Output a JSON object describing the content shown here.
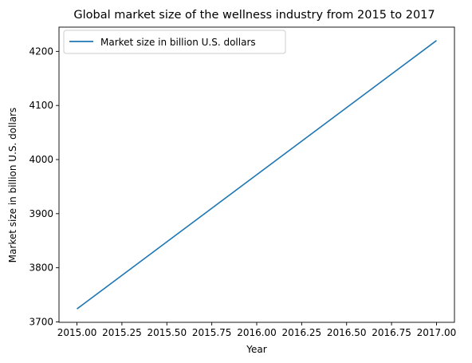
{
  "chart_data": {
    "type": "line",
    "title": "Global market size of the wellness industry from 2015 to 2017",
    "xlabel": "Year",
    "ylabel": "Market size in billion U.S. dollars",
    "x": [
      2015,
      2017
    ],
    "series": [
      {
        "name": "Market size in billion U.S. dollars",
        "values": [
          3724,
          4220
        ],
        "color": "#1f77b4"
      }
    ],
    "xlim": [
      2014.9,
      2017.1
    ],
    "ylim": [
      3699.2,
      4244.8
    ],
    "xticks": [
      2015.0,
      2015.25,
      2015.5,
      2015.75,
      2016.0,
      2016.25,
      2016.5,
      2016.75,
      2017.0
    ],
    "xtick_labels": [
      "2015.00",
      "2015.25",
      "2015.50",
      "2015.75",
      "2016.00",
      "2016.25",
      "2016.50",
      "2016.75",
      "2017.00"
    ],
    "yticks": [
      3700,
      3800,
      3900,
      4000,
      4100,
      4200
    ],
    "ytick_labels": [
      "3700",
      "3800",
      "3900",
      "4000",
      "4100",
      "4200"
    ],
    "grid": false,
    "legend": "upper-left"
  }
}
